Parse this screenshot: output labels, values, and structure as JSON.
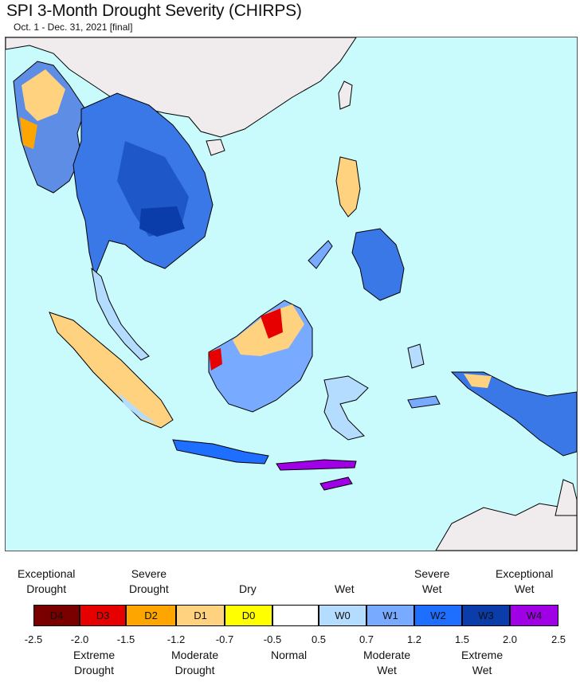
{
  "title": "SPI 3-Month Drought Severity (CHIRPS)",
  "subtitle": "Oct. 1 - Dec. 31, 2021 [final]",
  "legend": {
    "top_labels": [
      {
        "key": "exceptional_drought",
        "text_lines": [
          "Exceptional",
          "Drought"
        ]
      },
      {
        "key": "severe_drought",
        "text_lines": [
          "Severe",
          "Drought"
        ]
      },
      {
        "key": "dry",
        "text_lines": [
          "Dry"
        ]
      },
      {
        "key": "wet",
        "text_lines": [
          "Wet"
        ]
      },
      {
        "key": "severe_wet",
        "text_lines": [
          "Severe",
          "Wet"
        ]
      },
      {
        "key": "exceptional_wet",
        "text_lines": [
          "Exceptional",
          "Wet"
        ]
      }
    ],
    "bottom_labels": [
      {
        "key": "extreme_drought",
        "text_lines": [
          "Extreme",
          "Drought"
        ]
      },
      {
        "key": "moderate_drought",
        "text_lines": [
          "Moderate",
          "Drought"
        ]
      },
      {
        "key": "normal",
        "text_lines": [
          "Normal"
        ]
      },
      {
        "key": "moderate_wet",
        "text_lines": [
          "Moderate",
          "Wet"
        ]
      },
      {
        "key": "extreme_wet",
        "text_lines": [
          "Extreme",
          "Wet"
        ]
      }
    ],
    "categories": [
      {
        "code": "D4",
        "color": "#7a0000"
      },
      {
        "code": "D3",
        "color": "#e60000"
      },
      {
        "code": "D2",
        "color": "#ffa500"
      },
      {
        "code": "D1",
        "color": "#ffd27f"
      },
      {
        "code": "D0",
        "color": "#ffff00"
      },
      {
        "code": "",
        "color": "#ffffff"
      },
      {
        "code": "W0",
        "color": "#b4dcff"
      },
      {
        "code": "W1",
        "color": "#78aaff"
      },
      {
        "code": "W2",
        "color": "#1e6eff"
      },
      {
        "code": "W3",
        "color": "#0a3caa"
      },
      {
        "code": "W4",
        "color": "#a000e6"
      }
    ],
    "ticks": [
      "-2.5",
      "-2.0",
      "-1.5",
      "-1.2",
      "-0.7",
      "-0.5",
      "0.5",
      "0.7",
      "1.2",
      "1.5",
      "2.0",
      "2.5"
    ]
  },
  "map_colors": {
    "ocean": "#c9fbfd",
    "land_outside": "#f0ecee",
    "border": "#000000"
  }
}
